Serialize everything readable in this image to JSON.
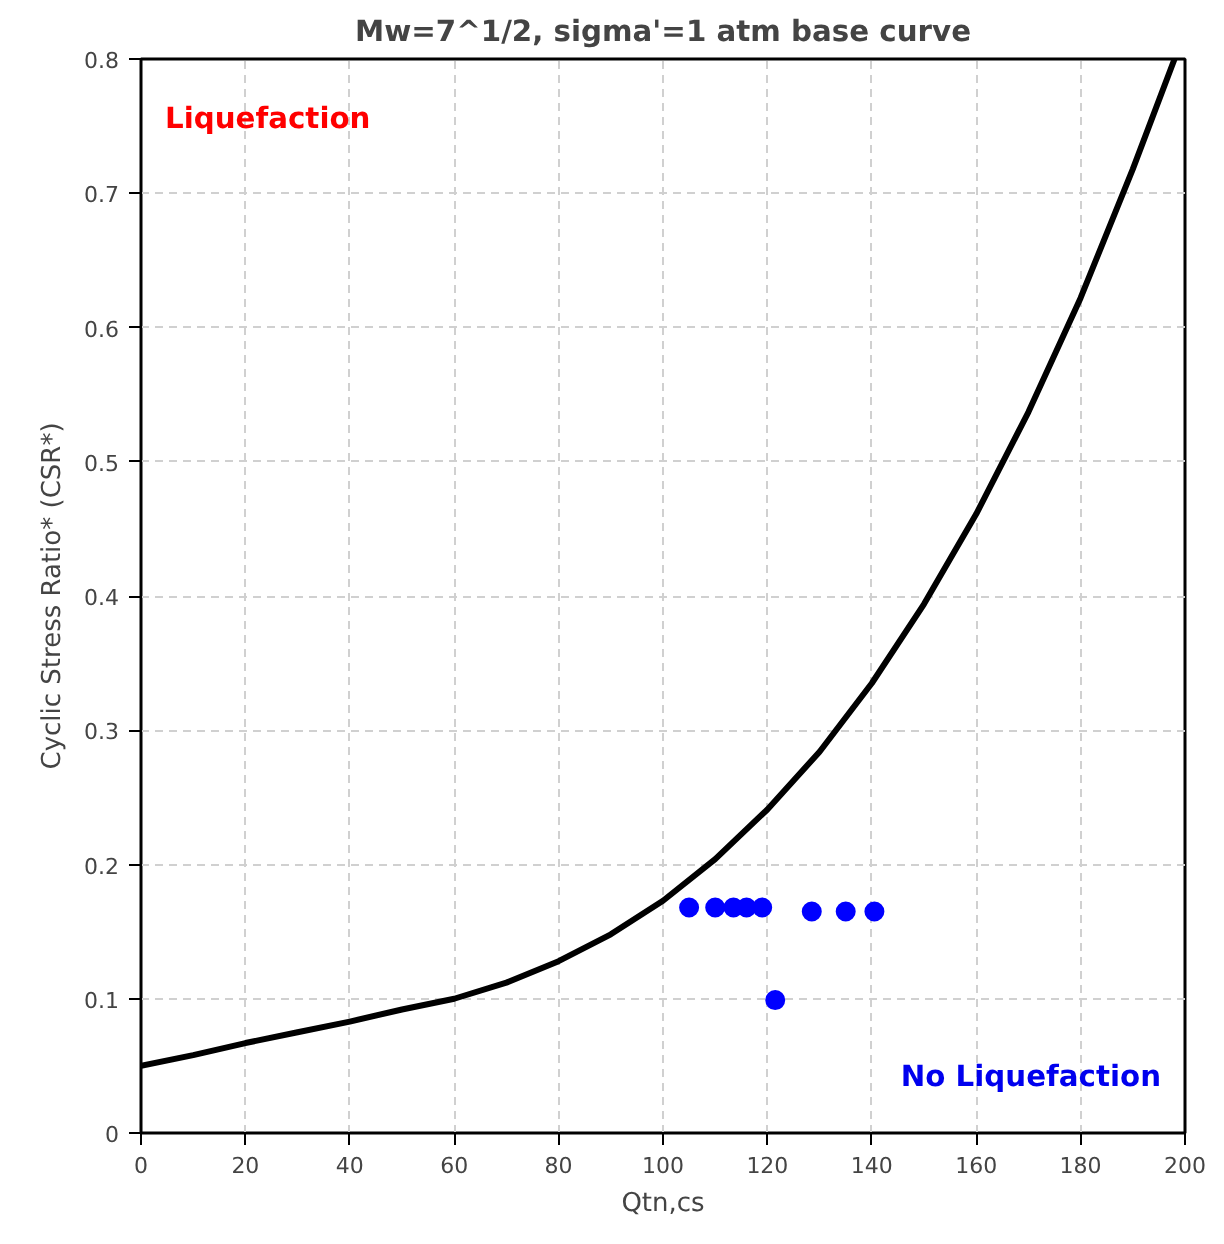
{
  "chart_data": {
    "type": "line",
    "title": "Mw=7^1/2, sigma'=1 atm base curve",
    "xlabel": "Qtn,cs",
    "ylabel": "Cyclic Stress Ratio* (CSR*)",
    "xlim": [
      0,
      200
    ],
    "ylim": [
      0,
      0.8
    ],
    "xticks": [
      0,
      20,
      40,
      60,
      80,
      100,
      120,
      140,
      160,
      180,
      200
    ],
    "yticks": [
      0,
      0.1,
      0.2,
      0.3,
      0.4,
      0.5,
      0.6,
      0.7,
      0.8
    ],
    "grid": true,
    "series": [
      {
        "color": "#000000",
        "marker": "none",
        "line_style": "solid",
        "x": [
          0,
          10,
          20,
          30,
          40,
          50,
          60,
          70,
          80,
          90,
          100,
          110,
          120,
          130,
          140,
          150,
          160,
          170,
          180,
          190,
          198
        ],
        "values": [
          0.05,
          0.058,
          0.067,
          0.075,
          0.083,
          0.092,
          0.1,
          0.112,
          0.128,
          0.148,
          0.173,
          0.204,
          0.241,
          0.284,
          0.335,
          0.394,
          0.461,
          0.537,
          0.622,
          0.718,
          0.8
        ]
      },
      {
        "type": "scatter",
        "color": "#0000ff",
        "marker": "circle",
        "x": [
          105,
          110,
          113.5,
          116,
          119,
          128.5,
          135,
          140.5,
          121.5
        ],
        "values": [
          0.168,
          0.168,
          0.168,
          0.168,
          0.168,
          0.165,
          0.165,
          0.165,
          0.099
        ]
      }
    ],
    "annotations": [
      "Liquefaction",
      "No Liquefaction"
    ]
  }
}
